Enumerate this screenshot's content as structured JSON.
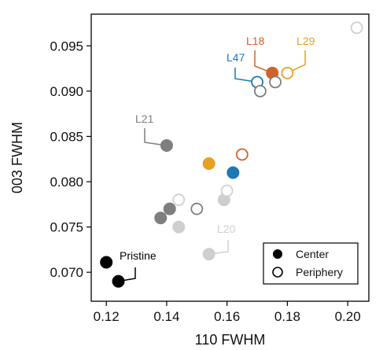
{
  "chart_data": {
    "type": "scatter",
    "xlabel": "110 FWHM",
    "ylabel": "003 FWHM",
    "xlim": [
      0.115,
      0.207
    ],
    "ylim": [
      0.0668,
      0.0985
    ],
    "xticks": [
      0.12,
      0.14,
      0.16,
      0.18,
      0.2
    ],
    "xtick_labels": [
      "0.12",
      "0.14",
      "0.16",
      "0.18",
      "0.20"
    ],
    "yticks": [
      0.07,
      0.075,
      0.08,
      0.085,
      0.09,
      0.095
    ],
    "ytick_labels": [
      "0.070",
      "0.075",
      "0.080",
      "0.085",
      "0.090",
      "0.095"
    ],
    "grid": false,
    "legend": {
      "position": "bottom-right",
      "entries": [
        {
          "label": "Center",
          "marker": "filled"
        },
        {
          "label": "Periphery",
          "marker": "open"
        }
      ]
    },
    "points": [
      {
        "group": "Pristine",
        "type": "Center",
        "color": "#000000",
        "x": 0.12,
        "y": 0.0711
      },
      {
        "group": "Pristine",
        "type": "Center",
        "color": "#000000",
        "x": 0.124,
        "y": 0.069
      },
      {
        "group": "L21",
        "type": "Center",
        "color": "#7f7f7f",
        "x": 0.14,
        "y": 0.084
      },
      {
        "group": "L21",
        "type": "Center",
        "color": "#7f7f7f",
        "x": 0.138,
        "y": 0.076
      },
      {
        "group": "L21",
        "type": "Center",
        "color": "#7f7f7f",
        "x": 0.141,
        "y": 0.077
      },
      {
        "group": "L21",
        "type": "Periphery",
        "color": "#7f7f7f",
        "x": 0.15,
        "y": 0.077
      },
      {
        "group": "L20",
        "type": "Center",
        "color": "#cfcfcf",
        "x": 0.144,
        "y": 0.075
      },
      {
        "group": "L20",
        "type": "Center",
        "color": "#cfcfcf",
        "x": 0.154,
        "y": 0.072
      },
      {
        "group": "L20",
        "type": "Center",
        "color": "#cfcfcf",
        "x": 0.159,
        "y": 0.078
      },
      {
        "group": "L20",
        "type": "Periphery",
        "color": "#cfcfcf",
        "x": 0.144,
        "y": 0.078
      },
      {
        "group": "L20",
        "type": "Periphery",
        "color": "#cfcfcf",
        "x": 0.16,
        "y": 0.079
      },
      {
        "group": "L20",
        "type": "Periphery",
        "color": "#cfcfcf",
        "x": 0.203,
        "y": 0.097
      },
      {
        "group": "L29",
        "type": "Center",
        "color": "#e8a020",
        "x": 0.154,
        "y": 0.082
      },
      {
        "group": "L29",
        "type": "Periphery",
        "color": "#e8a020",
        "x": 0.18,
        "y": 0.092
      },
      {
        "group": "L47",
        "type": "Center",
        "color": "#1f77b4",
        "x": 0.162,
        "y": 0.081
      },
      {
        "group": "L47",
        "type": "Periphery",
        "color": "#1f77b4",
        "x": 0.17,
        "y": 0.091
      },
      {
        "group": "L18",
        "type": "Periphery",
        "color": "#d2622a",
        "x": 0.165,
        "y": 0.083
      },
      {
        "group": "L18",
        "type": "Center",
        "color": "#d2622a",
        "x": 0.175,
        "y": 0.092
      },
      {
        "group": "L21",
        "type": "Periphery",
        "color": "#7f7f7f",
        "x": 0.171,
        "y": 0.09
      },
      {
        "group": "L21",
        "type": "Periphery",
        "color": "#7f7f7f",
        "x": 0.176,
        "y": 0.091
      }
    ],
    "annotations": [
      {
        "text": "Pristine",
        "color": "#000000",
        "target": [
          0.124,
          0.069
        ]
      },
      {
        "text": "L21",
        "color": "#7f7f7f",
        "target": [
          0.14,
          0.084
        ]
      },
      {
        "text": "L20",
        "color": "#cfcfcf",
        "target": [
          0.154,
          0.072
        ]
      },
      {
        "text": "L47",
        "color": "#1f77b4",
        "target": [
          0.17,
          0.091
        ]
      },
      {
        "text": "L18",
        "color": "#d2622a",
        "target": [
          0.175,
          0.092
        ]
      },
      {
        "text": "L29",
        "color": "#e8a020",
        "target": [
          0.18,
          0.092
        ]
      }
    ]
  }
}
